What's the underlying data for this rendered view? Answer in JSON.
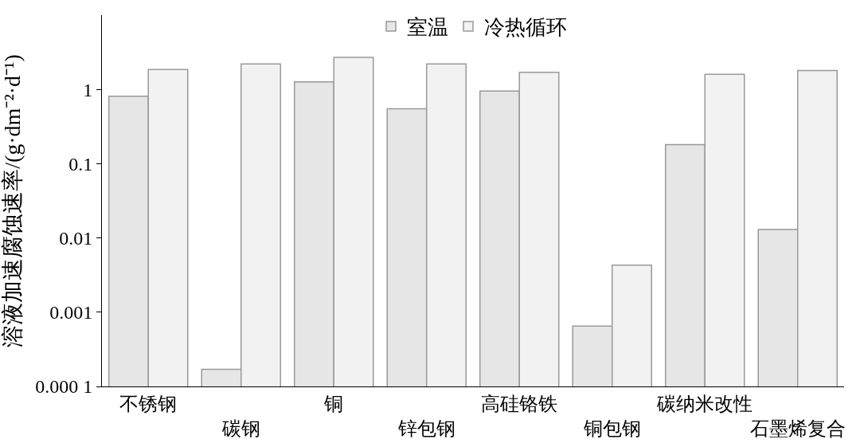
{
  "chart_data": {
    "type": "bar",
    "ylabel": "溶液加速腐蚀速率/(g·dm⁻²·d⁻¹)",
    "categories": [
      "不锈钢",
      "碳钢",
      "铜",
      "锌包钢",
      "高硅铬铁",
      "铜包钢",
      "碳纳米改性",
      "石墨烯复合"
    ],
    "series": [
      {
        "name": "室温",
        "color": "#e6e6e6",
        "values": [
          0.81,
          0.00017,
          1.26,
          0.55,
          0.95,
          0.00065,
          0.18,
          0.013
        ]
      },
      {
        "name": "冷热循环",
        "color": "#f2f2f2",
        "values": [
          1.85,
          2.2,
          2.7,
          2.2,
          1.7,
          0.0043,
          1.6,
          1.8
        ]
      }
    ],
    "log": "y",
    "ylim": [
      0.0001,
      10
    ],
    "yticks": [
      {
        "value": 0.0001,
        "label": "0.000 1"
      },
      0.001,
      0.01,
      0.1,
      1
    ],
    "legend": "top"
  }
}
